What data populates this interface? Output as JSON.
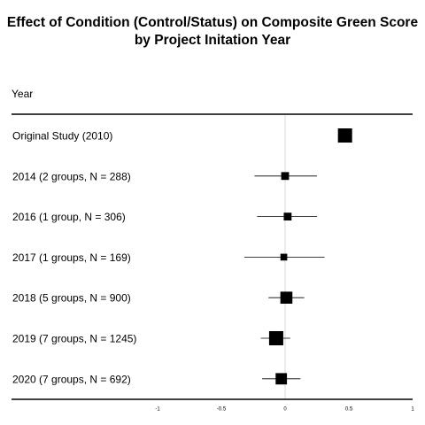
{
  "title": {
    "line1": "Effect of Condition (Control/Status) on Composite Green Score",
    "line2": "by Project Initation Year"
  },
  "column_header": "Year",
  "chart_data": {
    "type": "forest",
    "xlim": [
      -1,
      1
    ],
    "x_ticks": [
      "-1",
      "-0.5",
      "0",
      "0.5",
      "1"
    ],
    "x_tick_values": [
      -1,
      -0.5,
      0,
      0.5,
      1
    ],
    "reference_line": 0,
    "rows": [
      {
        "label": "Original Study (2010)",
        "estimate": 0.47,
        "ci_low": null,
        "ci_high": null,
        "weight": 1.0
      },
      {
        "label": "2014 (2 groups, N = 288)",
        "estimate": 0.0,
        "ci_low": -0.24,
        "ci_high": 0.25,
        "weight": 0.55
      },
      {
        "label": "2016 (1 group, N = 306)",
        "estimate": 0.02,
        "ci_low": -0.22,
        "ci_high": 0.25,
        "weight": 0.55
      },
      {
        "label": "2017 (1 groups, N = 169)",
        "estimate": -0.01,
        "ci_low": -0.32,
        "ci_high": 0.31,
        "weight": 0.48
      },
      {
        "label": "2018 (5 groups, N = 900)",
        "estimate": 0.01,
        "ci_low": -0.13,
        "ci_high": 0.15,
        "weight": 0.85
      },
      {
        "label": "2019 (7 groups, N = 1245)",
        "estimate": -0.07,
        "ci_low": -0.19,
        "ci_high": 0.04,
        "weight": 1.0
      },
      {
        "label": "2020 (7 groups, N = 692)",
        "estimate": -0.03,
        "ci_low": -0.18,
        "ci_high": 0.12,
        "weight": 0.8
      }
    ]
  }
}
